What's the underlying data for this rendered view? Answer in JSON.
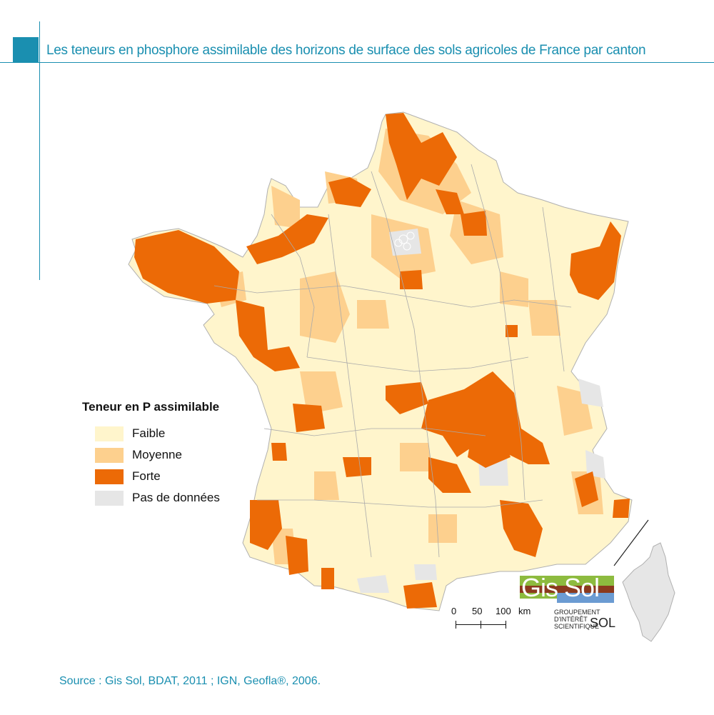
{
  "title": "Les teneurs en phosphore assimilable des horizons de surface des sols agricoles de France par canton",
  "legend": {
    "title": "Teneur en P assimilable",
    "items": [
      {
        "label": "Faible",
        "color": "#fff5cc"
      },
      {
        "label": "Moyenne",
        "color": "#fdd08e"
      },
      {
        "label": "Forte",
        "color": "#ec6a06"
      },
      {
        "label": "Pas de données",
        "color": "#e6e6e6"
      }
    ]
  },
  "scale": {
    "labels": [
      "0",
      "50",
      "100",
      "km"
    ]
  },
  "logo": {
    "text": "Gis Sol",
    "line1": "GROUPEMENT",
    "line2": "D'INTÉRÊT",
    "line3": "SCIENTIFIQUE",
    "sol": "SOL"
  },
  "source": "Source : Gis Sol, BDAT, 2011 ; IGN, Geofla®, 2006.",
  "colors": {
    "accent": "#1a8fb0",
    "border": "#aaaaaa"
  }
}
